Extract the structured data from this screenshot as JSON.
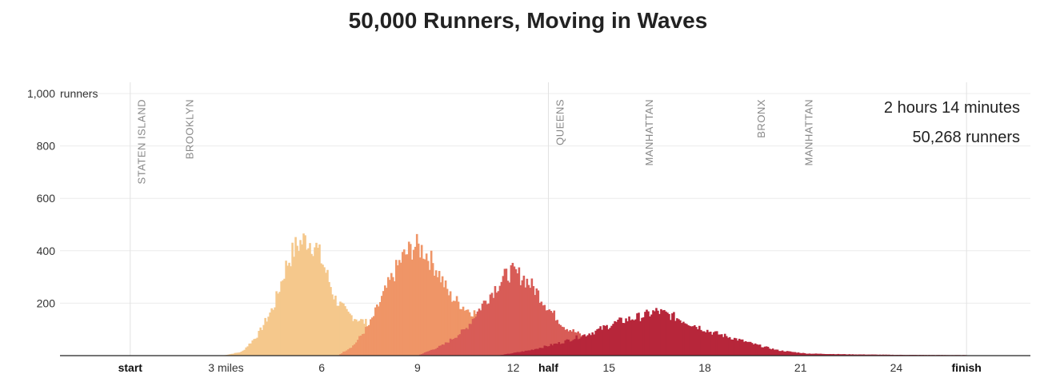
{
  "title": "50,000 Runners, Moving in Waves",
  "stats": {
    "time": "2 hours 14 minutes",
    "runners": "50,268 runners"
  },
  "boroughs": [
    {
      "name": "STATEN ISLAND",
      "mile": 0.35
    },
    {
      "name": "BROOKLYN",
      "mile": 1.85
    },
    {
      "name": "QUEENS",
      "mile": 13.45
    },
    {
      "name": "MANHATTAN",
      "mile": 16.25
    },
    {
      "name": "BRONX",
      "mile": 19.75
    },
    {
      "name": "MANHATTAN",
      "mile": 21.25
    }
  ],
  "chart_data": {
    "type": "area",
    "x_unit": "miles",
    "y_unit": "runners",
    "xlim": [
      -2.2,
      28.2
    ],
    "ylim": [
      0,
      1000
    ],
    "y_ticks": [
      {
        "value": 1000,
        "label": "1,000"
      },
      {
        "value": 800,
        "label": "800"
      },
      {
        "value": 600,
        "label": "600"
      },
      {
        "value": 400,
        "label": "400"
      },
      {
        "value": 200,
        "label": "200"
      }
    ],
    "y_unit_label": "runners",
    "x_ticks": [
      {
        "value": 0,
        "label": "start",
        "bold": true
      },
      {
        "value": 3,
        "label": "3 miles",
        "bold": false
      },
      {
        "value": 6,
        "label": "6",
        "bold": false
      },
      {
        "value": 9,
        "label": "9",
        "bold": false
      },
      {
        "value": 12,
        "label": "12",
        "bold": false
      },
      {
        "value": 13.1,
        "label": "half",
        "bold": true
      },
      {
        "value": 15,
        "label": "15",
        "bold": false
      },
      {
        "value": 18,
        "label": "18",
        "bold": false
      },
      {
        "value": 21,
        "label": "21",
        "bold": false
      },
      {
        "value": 24,
        "label": "24",
        "bold": false
      },
      {
        "value": 26.2,
        "label": "finish",
        "bold": true
      }
    ],
    "grid": true,
    "series": [
      {
        "color": "#f5c88c",
        "points": [
          [
            2.9,
            0
          ],
          [
            3.5,
            15
          ],
          [
            4.0,
            80
          ],
          [
            4.5,
            190
          ],
          [
            4.9,
            350
          ],
          [
            5.2,
            420
          ],
          [
            5.5,
            445
          ],
          [
            5.8,
            420
          ],
          [
            6.1,
            330
          ],
          [
            6.4,
            220
          ],
          [
            6.8,
            160
          ],
          [
            7.2,
            135
          ],
          [
            7.6,
            115
          ],
          [
            8.0,
            90
          ],
          [
            8.6,
            70
          ],
          [
            9.2,
            40
          ],
          [
            9.8,
            10
          ],
          [
            10.2,
            0
          ]
        ]
      },
      {
        "color": "#ef9567",
        "points": [
          [
            6.5,
            0
          ],
          [
            7.0,
            40
          ],
          [
            7.5,
            120
          ],
          [
            8.0,
            250
          ],
          [
            8.5,
            370
          ],
          [
            8.9,
            420
          ],
          [
            9.2,
            400
          ],
          [
            9.6,
            330
          ],
          [
            10.0,
            230
          ],
          [
            10.5,
            180
          ],
          [
            11.0,
            150
          ],
          [
            11.5,
            100
          ],
          [
            12.0,
            60
          ],
          [
            12.6,
            20
          ],
          [
            13.2,
            0
          ]
        ]
      },
      {
        "color": "#d85c57",
        "points": [
          [
            9.0,
            0
          ],
          [
            9.8,
            40
          ],
          [
            10.5,
            100
          ],
          [
            11.0,
            190
          ],
          [
            11.5,
            270
          ],
          [
            11.9,
            320
          ],
          [
            12.3,
            300
          ],
          [
            12.7,
            250
          ],
          [
            13.1,
            180
          ],
          [
            13.6,
            110
          ],
          [
            14.1,
            80
          ],
          [
            14.6,
            40
          ],
          [
            15.2,
            15
          ],
          [
            15.8,
            0
          ]
        ]
      },
      {
        "color": "#b7263a",
        "points": [
          [
            11.5,
            0
          ],
          [
            12.5,
            20
          ],
          [
            13.5,
            50
          ],
          [
            14.5,
            90
          ],
          [
            15.3,
            130
          ],
          [
            16.0,
            150
          ],
          [
            16.5,
            170
          ],
          [
            17.0,
            150
          ],
          [
            17.6,
            120
          ],
          [
            18.2,
            90
          ],
          [
            18.8,
            70
          ],
          [
            19.5,
            45
          ],
          [
            20.3,
            20
          ],
          [
            21.2,
            8
          ],
          [
            22.5,
            5
          ],
          [
            24.0,
            3
          ],
          [
            26.2,
            2
          ]
        ]
      }
    ]
  }
}
